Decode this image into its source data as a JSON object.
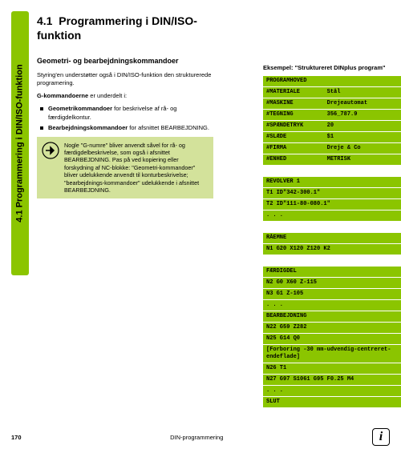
{
  "sidebar": {
    "label": "4.1 Programmering i DIN/ISO-funktion",
    "bg_color": "#8bc500"
  },
  "heading": {
    "number": "4.1",
    "title_line1": "Programmering i DIN/ISO-",
    "title_line2": "funktion"
  },
  "subheading": "Geometri- og bearbejdningskommandoer",
  "para1": "Styring'en understøtter også i DIN/ISO-funktion den strukturerede programering.",
  "para2_prefix": "G-kommandoerne",
  "para2_rest": " er underdelt i:",
  "bullets": [
    {
      "bold": "Geometrikommandoer",
      "rest": " for beskrivelse af rå- og færdigdelkontur."
    },
    {
      "bold": "Bearbejdningskommandoer",
      "rest": " for afsnittet BEARBEJDNING."
    }
  ],
  "note": "Nogle \"G-numre\" bliver anvendt såvel for rå- og færdigdelbeskrivelse, som også i afsnittet BEARBEJDNING. Pas på ved kopiering eller forskydning af NC-blokke: \"Geometri-kommandoer\" bliver udelukkende anvendt til konturbeskrivelse; \"bearbejdnings-kommandoer\" udelukkende i afsnittet BEARBEJDNING.",
  "example": {
    "title": "Eksempel: \"Struktureret DINplus program\"",
    "lines": [
      {
        "text": "PROGRAMHOVED",
        "bg": "green"
      },
      {
        "text": "#MATERIALE        Stål",
        "bg": "green"
      },
      {
        "text": "#MASKINE          Drejeautomat",
        "bg": "green"
      },
      {
        "text": "#TEGNING          356_787.9",
        "bg": "green"
      },
      {
        "text": "#SPÆNDETRYK       20",
        "bg": "green"
      },
      {
        "text": "#SLÆDE            $1",
        "bg": "green"
      },
      {
        "text": "#FIRMA            Dreje & Co",
        "bg": "green"
      },
      {
        "text": "#ENHED            METRISK",
        "bg": "green"
      },
      {
        "text": " ",
        "bg": "white"
      },
      {
        "text": "REVOLVER 1",
        "bg": "green"
      },
      {
        "text": "T1 ID\"342-300.1\"",
        "bg": "green"
      },
      {
        "text": "T2 ID\"111-80-080.1\"",
        "bg": "green"
      },
      {
        "text": ". . .",
        "bg": "green"
      },
      {
        "text": " ",
        "bg": "white"
      },
      {
        "text": "RÅEMNE",
        "bg": "green"
      },
      {
        "text": "N1 G20 X120 Z120 K2",
        "bg": "green"
      },
      {
        "text": " ",
        "bg": "white"
      },
      {
        "text": "FÆRDIGDEL",
        "bg": "green"
      },
      {
        "text": "N2 G0 X60 Z-115",
        "bg": "green"
      },
      {
        "text": "N3 G1 Z-105",
        "bg": "green"
      },
      {
        "text": ". . .",
        "bg": "green"
      },
      {
        "text": "BEARBEJDNING",
        "bg": "green"
      },
      {
        "text": "N22 G59 Z282",
        "bg": "green"
      },
      {
        "text": "N25 G14 Q0",
        "bg": "green"
      },
      {
        "text": "[Forboring -30 mm-udvendig-centreret-\nendeflade]",
        "bg": "green"
      },
      {
        "text": "N26 T1",
        "bg": "green"
      },
      {
        "text": "N27 G97 S1061 G95 F0.25 M4",
        "bg": "green"
      },
      {
        "text": ". . .",
        "bg": "green"
      },
      {
        "text": "SLUT",
        "bg": "green"
      }
    ]
  },
  "footer": {
    "page": "170",
    "center": "DIN-programmering"
  }
}
